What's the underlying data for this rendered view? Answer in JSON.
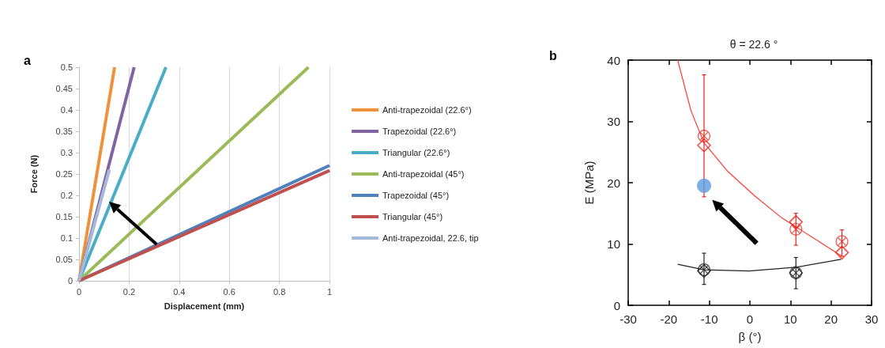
{
  "chart_data": [
    {
      "type": "line",
      "xlabel": "Displacement (mm)",
      "ylabel": "Force (N)",
      "annotations": [
        "a"
      ],
      "xlim": [
        0,
        1
      ],
      "xticks": [
        0,
        0.2,
        0.4,
        0.6,
        0.8,
        1
      ],
      "ylim": [
        0,
        0.5
      ],
      "yticks": [
        0,
        0.05,
        0.1,
        0.15,
        0.2,
        0.25,
        0.3,
        0.35,
        0.4,
        0.45,
        0.5
      ],
      "grid": "x",
      "legend": "right",
      "marker": "none",
      "series": [
        {
          "name": "Anti-trapezoidal (22.6°)",
          "color": "#f0923a",
          "x": [
            0,
            0.142
          ],
          "values": [
            0,
            0.5
          ]
        },
        {
          "name": "Trapezoidal (22.6°)",
          "color": "#8064a2",
          "x": [
            0,
            0.22
          ],
          "values": [
            0,
            0.5
          ]
        },
        {
          "name": "Triangular (22.6°)",
          "color": "#4bacc6",
          "x": [
            0,
            0.347
          ],
          "values": [
            0,
            0.5
          ]
        },
        {
          "name": "Anti-trapezoidal (45°)",
          "color": "#9bbb59",
          "x": [
            0,
            0.916
          ],
          "values": [
            0,
            0.5
          ]
        },
        {
          "name": "Trapezoidal (45°)",
          "color": "#4f81bd",
          "x": [
            0,
            1
          ],
          "values": [
            0,
            0.27
          ]
        },
        {
          "name": "Triangular (45°)",
          "color": "#c0504d",
          "x": [
            0,
            1
          ],
          "values": [
            0,
            0.258
          ]
        },
        {
          "name": "Anti-trapezoidal, 22.6, tip",
          "color": "#a5b9dd",
          "x": [
            0,
            0.121
          ],
          "values": [
            0,
            0.26
          ]
        }
      ]
    },
    {
      "type": "scatter",
      "title": "θ = 22.6 °",
      "xlabel": "β (°)",
      "ylabel": "E (MPa)",
      "annotations": [
        "b"
      ],
      "xlim": [
        -30,
        30
      ],
      "xticks": [
        -30,
        -20,
        -10,
        0,
        10,
        20,
        30
      ],
      "ylim": [
        0,
        40
      ],
      "yticks": [
        0,
        10,
        20,
        30,
        40
      ],
      "grid": false,
      "legend": false,
      "series": [
        {
          "type": "line",
          "color": "#ff3b30",
          "marker": "none",
          "x": [
            -17.8,
            -14.5,
            -11.3,
            -5.4,
            1.1,
            7.6,
            11.35,
            17.3,
            22.7
          ],
          "values": [
            40,
            31.7,
            26.5,
            21.8,
            17.9,
            14.4,
            12.8,
            10.3,
            8
          ]
        },
        {
          "type": "line",
          "color": "#222222",
          "marker": "none",
          "x": [
            -17.8,
            -11.3,
            -0.2,
            11.35,
            22.5
          ],
          "values": [
            6.7,
            5.8,
            5.6,
            6.2,
            7.5
          ]
        },
        {
          "color": "#e8231c",
          "x": [
            -11.3,
            11.35,
            22.7
          ],
          "values": [
            27.6,
            12.4,
            10.4
          ],
          "errors": [
            [
              17.7,
              37.6
            ],
            [
              9.8,
              15
            ],
            [
              8,
              12.3
            ]
          ]
        },
        {
          "color": "#e8231c",
          "marker": "diamond",
          "x": [
            -11.3,
            11.35,
            22.7
          ],
          "values": [
            26.1,
            13.6,
            8.6
          ]
        },
        {
          "color": "#222222",
          "x": [
            -11.3,
            11.35
          ],
          "values": [
            5.8,
            5.3
          ],
          "errors": [
            [
              3.4,
              8.5
            ],
            [
              2.7,
              7.8
            ]
          ]
        },
        {
          "color": "#222222",
          "marker": "diamond",
          "x": [
            -11.3,
            11.35
          ],
          "values": [
            5.6,
            5.3
          ]
        },
        {
          "color": "#5b9be0",
          "marker": "circle",
          "x": [
            -11.3
          ],
          "values": [
            19.5
          ]
        }
      ]
    }
  ]
}
